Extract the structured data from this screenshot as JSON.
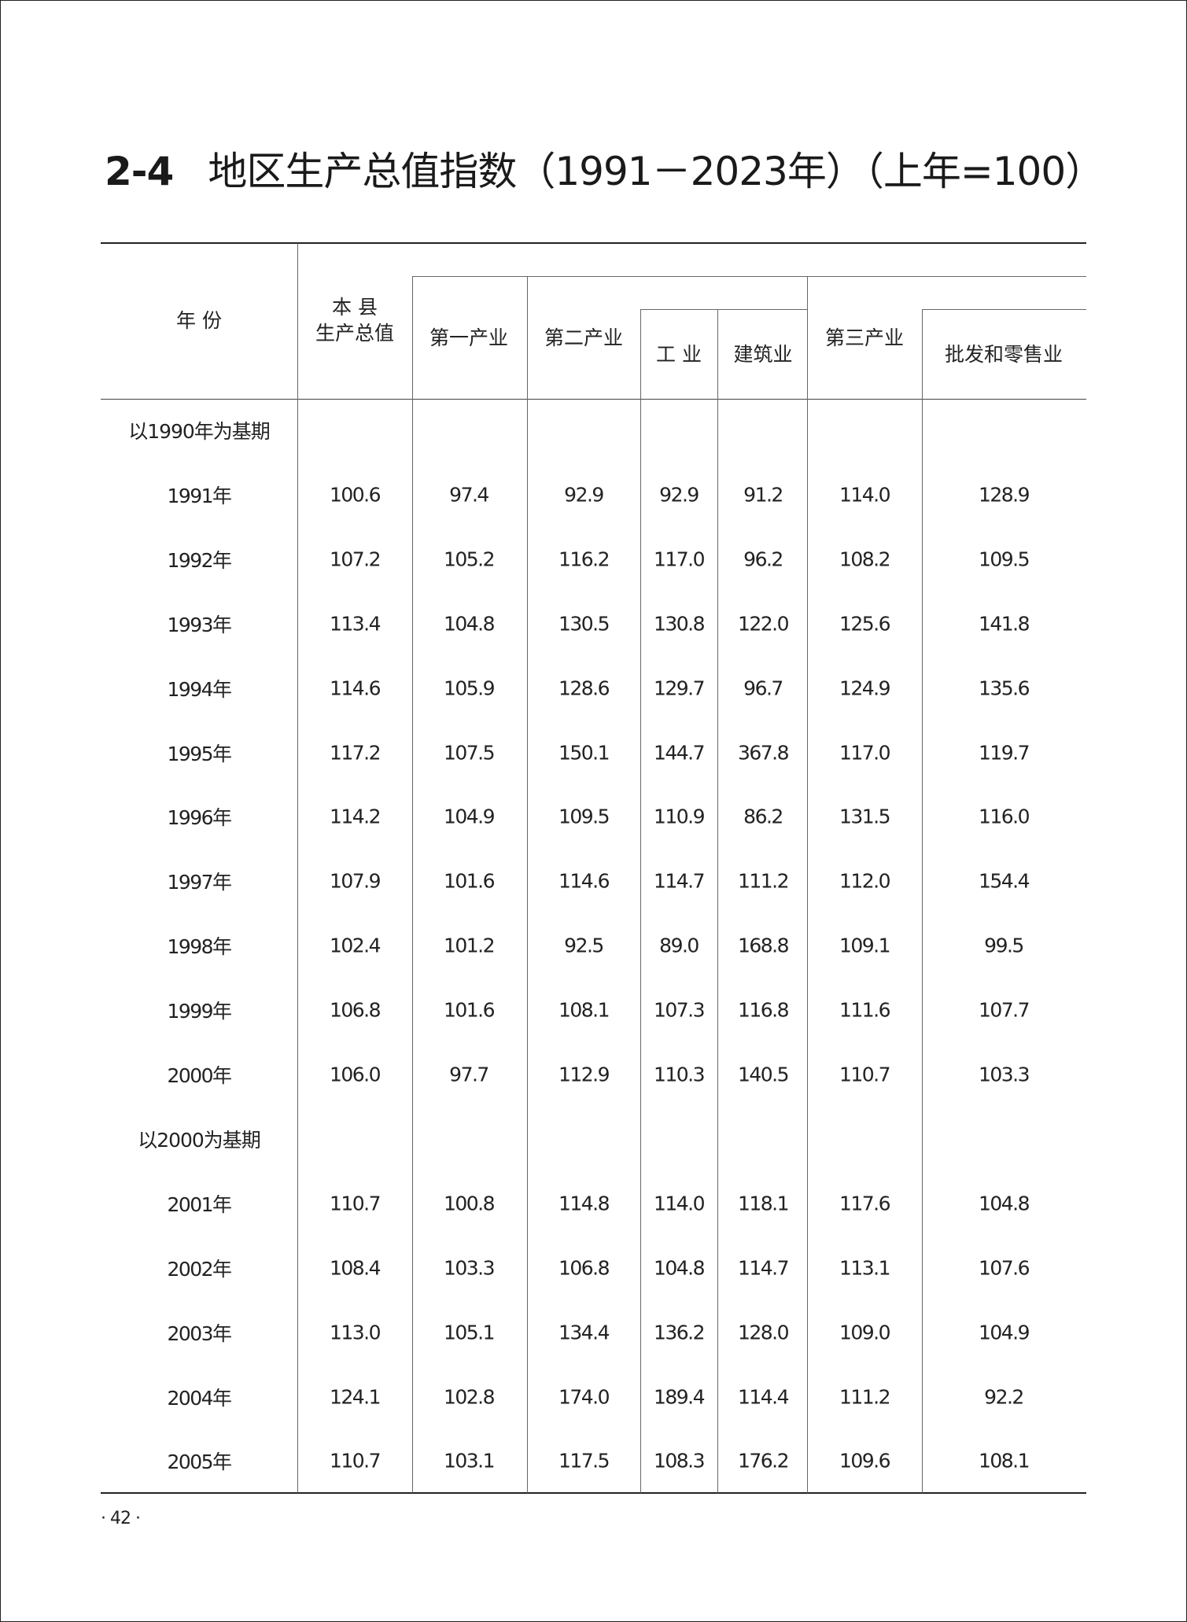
{
  "title": {
    "number": "2-4",
    "text": "地区生产总值指数（1991－2023年）（上年=100）"
  },
  "header": {
    "year": "年  份",
    "county_gdp_line1": "本  县",
    "county_gdp_line2": "生产总值",
    "primary": "第一产业",
    "secondary": "第二产业",
    "industry": "工 业",
    "construction": "建筑业",
    "tertiary": "第三产业",
    "wholesale_retail": "批发和零售业"
  },
  "rows": [
    {
      "section": "以1990年为基期"
    },
    {
      "year": "1991年",
      "values": [
        "100.6",
        "97.4",
        "92.9",
        "92.9",
        "91.2",
        "114.0",
        "128.9"
      ]
    },
    {
      "year": "1992年",
      "values": [
        "107.2",
        "105.2",
        "116.2",
        "117.0",
        "96.2",
        "108.2",
        "109.5"
      ]
    },
    {
      "year": "1993年",
      "values": [
        "113.4",
        "104.8",
        "130.5",
        "130.8",
        "122.0",
        "125.6",
        "141.8"
      ]
    },
    {
      "year": "1994年",
      "values": [
        "114.6",
        "105.9",
        "128.6",
        "129.7",
        "96.7",
        "124.9",
        "135.6"
      ]
    },
    {
      "year": "1995年",
      "values": [
        "117.2",
        "107.5",
        "150.1",
        "144.7",
        "367.8",
        "117.0",
        "119.7"
      ]
    },
    {
      "year": "1996年",
      "values": [
        "114.2",
        "104.9",
        "109.5",
        "110.9",
        "86.2",
        "131.5",
        "116.0"
      ]
    },
    {
      "year": "1997年",
      "values": [
        "107.9",
        "101.6",
        "114.6",
        "114.7",
        "111.2",
        "112.0",
        "154.4"
      ]
    },
    {
      "year": "1998年",
      "values": [
        "102.4",
        "101.2",
        "92.5",
        "89.0",
        "168.8",
        "109.1",
        "99.5"
      ]
    },
    {
      "year": "1999年",
      "values": [
        "106.8",
        "101.6",
        "108.1",
        "107.3",
        "116.8",
        "111.6",
        "107.7"
      ]
    },
    {
      "year": "2000年",
      "values": [
        "106.0",
        "97.7",
        "112.9",
        "110.3",
        "140.5",
        "110.7",
        "103.3"
      ]
    },
    {
      "section": "以2000为基期"
    },
    {
      "year": "2001年",
      "values": [
        "110.7",
        "100.8",
        "114.8",
        "114.0",
        "118.1",
        "117.6",
        "104.8"
      ]
    },
    {
      "year": "2002年",
      "values": [
        "108.4",
        "103.3",
        "106.8",
        "104.8",
        "114.7",
        "113.1",
        "107.6"
      ]
    },
    {
      "year": "2003年",
      "values": [
        "113.0",
        "105.1",
        "134.4",
        "136.2",
        "128.0",
        "109.0",
        "104.9"
      ]
    },
    {
      "year": "2004年",
      "values": [
        "124.1",
        "102.8",
        "174.0",
        "189.4",
        "114.4",
        "111.2",
        "92.2"
      ]
    },
    {
      "year": "2005年",
      "values": [
        "110.7",
        "103.1",
        "117.5",
        "108.3",
        "176.2",
        "109.6",
        "108.1"
      ]
    }
  ],
  "footer": {
    "page_number": "·   42  ·"
  }
}
